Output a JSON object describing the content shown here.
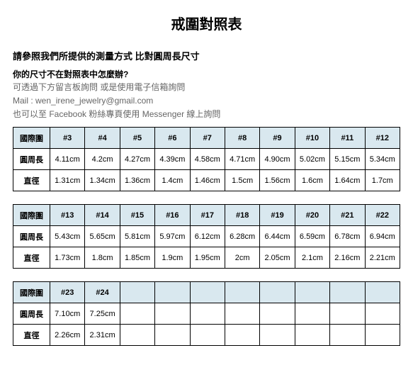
{
  "title": "戒圍對照表",
  "instruction": "請參照我們所提供的測量方式  比對圓周長尺寸",
  "question": "你的尺寸不在對照表中怎麼辦?",
  "notes": [
    "可透過下方留言板詢問    或是使用電子信箱詢問",
    "Mail : wen_irene_jewelry@gmail.com",
    "也可以至 Facebook 粉絲專頁使用 Messenger 線上詢問"
  ],
  "row_labels": [
    "國際圍",
    "圓周長",
    "直徑"
  ],
  "tables": [
    {
      "sizes": [
        "#3",
        "#4",
        "#5",
        "#6",
        "#7",
        "#8",
        "#9",
        "#10",
        "#11",
        "#12"
      ],
      "circ": [
        "4.11cm",
        "4.2cm",
        "4.27cm",
        "4.39cm",
        "4.58cm",
        "4.71cm",
        "4.90cm",
        "5.02cm",
        "5.15cm",
        "5.34cm"
      ],
      "diam": [
        "1.31cm",
        "1.34cm",
        "1.36cm",
        "1.4cm",
        "1.46cm",
        "1.5cm",
        "1.56cm",
        "1.6cm",
        "1.64cm",
        "1.7cm"
      ]
    },
    {
      "sizes": [
        "#13",
        "#14",
        "#15",
        "#16",
        "#17",
        "#18",
        "#19",
        "#20",
        "#21",
        "#22"
      ],
      "circ": [
        "5.43cm",
        "5.65cm",
        "5.81cm",
        "5.97cm",
        "6.12cm",
        "6.28cm",
        "6.44cm",
        "6.59cm",
        "6.78cm",
        "6.94cm"
      ],
      "diam": [
        "1.73cm",
        "1.8cm",
        "1.85cm",
        "1.9cm",
        "1.95cm",
        "2cm",
        "2.05cm",
        "2.1cm",
        "2.16cm",
        "2.21cm"
      ]
    },
    {
      "sizes": [
        "#23",
        "#24",
        "",
        "",
        "",
        "",
        "",
        "",
        "",
        ""
      ],
      "circ": [
        "7.10cm",
        "7.25cm",
        "",
        "",
        "",
        "",
        "",
        "",
        "",
        ""
      ],
      "diam": [
        "2.26cm",
        "2.31cm",
        "",
        "",
        "",
        "",
        "",
        "",
        "",
        ""
      ]
    }
  ],
  "colors": {
    "header_bg": "#d9e8ef",
    "border": "#000000",
    "text": "#000000",
    "note_text": "#666666",
    "bg": "#ffffff"
  },
  "fonts": {
    "title_size": 20,
    "body_size": 12,
    "cell_size": 11
  }
}
